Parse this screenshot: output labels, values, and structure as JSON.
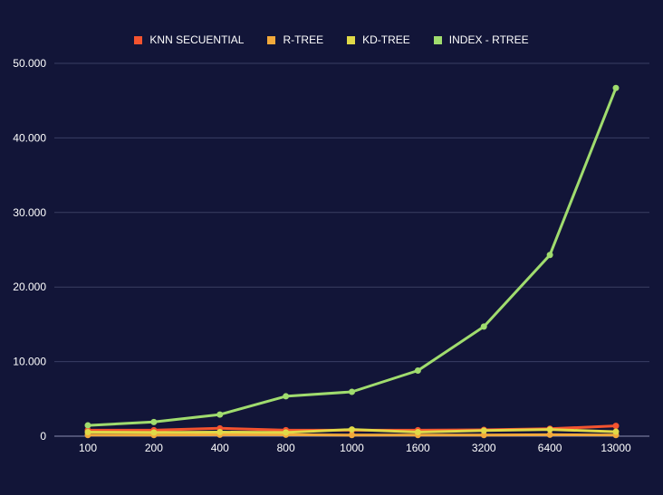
{
  "chart_data": {
    "type": "line",
    "title": "",
    "xlabel": "",
    "ylabel": "",
    "categories": [
      "100",
      "200",
      "400",
      "800",
      "1000",
      "1600",
      "3200",
      "6400",
      "13000"
    ],
    "ylim": [
      0,
      50000
    ],
    "yticks": [
      {
        "value": 0,
        "label": "0"
      },
      {
        "value": 10000,
        "label": "10.000"
      },
      {
        "value": 20000,
        "label": "20.000"
      },
      {
        "value": 30000,
        "label": "30.000"
      },
      {
        "value": 40000,
        "label": "40.000"
      },
      {
        "value": 50000,
        "label": "50.000"
      }
    ],
    "grid": true,
    "legend_position": "top-center",
    "series": [
      {
        "name": "KNN SECUENTIAL",
        "color": "#f4532f",
        "values": [
          800,
          800,
          1050,
          800,
          800,
          800,
          850,
          1000,
          1380
        ]
      },
      {
        "name": "R-TREE",
        "color": "#f2a93b",
        "values": [
          150,
          150,
          200,
          200,
          150,
          150,
          150,
          200,
          150
        ]
      },
      {
        "name": "KD-TREE",
        "color": "#e0d948",
        "values": [
          550,
          500,
          550,
          500,
          900,
          550,
          750,
          900,
          600
        ]
      },
      {
        "name": "INDEX - RTREE",
        "color": "#a0dc6e",
        "values": [
          1450,
          1900,
          2900,
          5350,
          5950,
          8800,
          14700,
          24300,
          46700
        ]
      }
    ]
  }
}
